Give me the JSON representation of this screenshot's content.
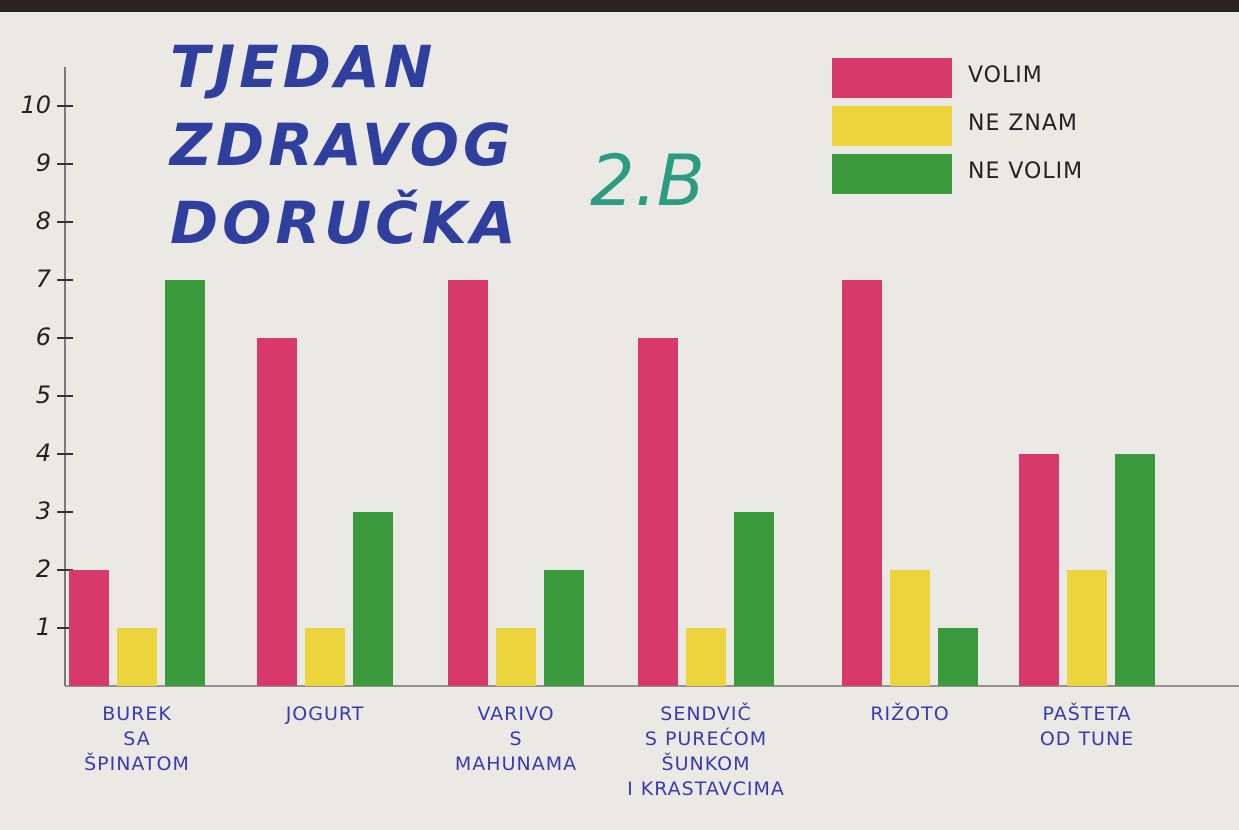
{
  "chart_data": {
    "type": "bar",
    "title": "TJEDAN ZDRAVOG DORUČKA",
    "subtitle": "2.B",
    "categories": [
      "BUREK\nSA\nŠPINATOM",
      "JOGURT",
      "VARIVO\nS\nMAHUNAMA",
      "SENDVIČ\nS PUREĆOM\nŠUNKOM\nI KRASTAVCIMA",
      "RIŽOTO",
      "PAŠTETA\nOD TUNE"
    ],
    "series": [
      {
        "name": "VOLIM",
        "color": "#d8396c",
        "values": [
          2,
          6,
          7,
          6,
          7,
          4
        ]
      },
      {
        "name": "NE ZNAM",
        "color": "#ecd43c",
        "values": [
          1,
          1,
          1,
          1,
          2,
          2
        ]
      },
      {
        "name": "NE VOLIM",
        "color": "#3a9a3c",
        "values": [
          7,
          3,
          2,
          3,
          1,
          4
        ]
      }
    ],
    "ylim": [
      0,
      10.5
    ],
    "yticks": [
      1,
      2,
      3,
      4,
      5,
      6,
      7,
      8,
      9,
      10
    ],
    "legend": "top-right"
  }
}
